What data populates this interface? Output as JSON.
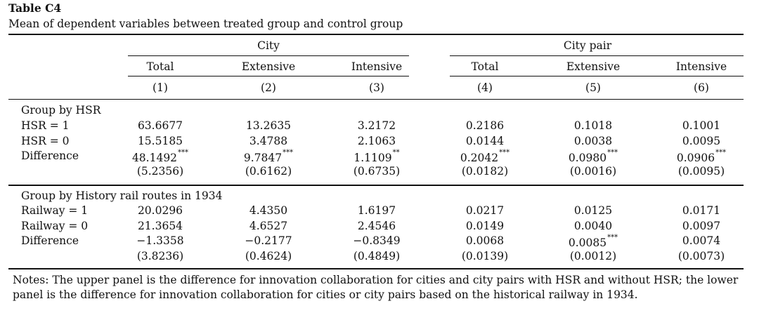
{
  "table": {
    "title": "Table C4",
    "subtitle": "Mean of dependent variables between treated group and control group",
    "group_headers": [
      "City",
      "City pair"
    ],
    "columns": [
      "Total",
      "Extensive",
      "Intensive",
      "Total",
      "Extensive",
      "Intensive"
    ],
    "column_numbers": [
      "(1)",
      "(2)",
      "(3)",
      "(4)",
      "(5)",
      "(6)"
    ],
    "panels": [
      {
        "label": "Group by HSR",
        "rows": [
          {
            "label": "HSR = 1",
            "values": [
              "63.6677",
              "13.2635",
              "3.2172",
              "0.2186",
              "0.1018",
              "0.1001"
            ],
            "stars": [
              "",
              "",
              "",
              "",
              "",
              ""
            ]
          },
          {
            "label": "HSR = 0",
            "values": [
              "15.5185",
              "3.4788",
              "2.1063",
              "0.0144",
              "0.0038",
              "0.0095"
            ],
            "stars": [
              "",
              "",
              "",
              "",
              "",
              ""
            ]
          },
          {
            "label": "Difference",
            "values": [
              "48.1492",
              "9.7847",
              "1.1109",
              "0.2042",
              "0.0980",
              "0.0906"
            ],
            "stars": [
              "***",
              "***",
              "**",
              "***",
              "***",
              "***"
            ]
          },
          {
            "label": "",
            "values": [
              "(5.2356)",
              "(0.6162)",
              "(0.6735)",
              "(0.0182)",
              "(0.0016)",
              "(0.0095)"
            ],
            "stars": [
              "",
              "",
              "",
              "",
              "",
              ""
            ]
          }
        ]
      },
      {
        "label": "Group by History rail routes in 1934",
        "rows": [
          {
            "label": "Railway = 1",
            "values": [
              "20.0296",
              "4.4350",
              "1.6197",
              "0.0217",
              "0.0125",
              "0.0171"
            ],
            "stars": [
              "",
              "",
              "",
              "",
              "",
              ""
            ]
          },
          {
            "label": "Railway = 0",
            "values": [
              "21.3654",
              "4.6527",
              "2.4546",
              "0.0149",
              "0.0040",
              "0.0097"
            ],
            "stars": [
              "",
              "",
              "",
              "",
              "",
              ""
            ]
          },
          {
            "label": "Difference",
            "values": [
              "−1.3358",
              "−0.2177",
              "−0.8349",
              "0.0068",
              "0.0085",
              "0.0074"
            ],
            "stars": [
              "",
              "",
              "",
              "",
              "***",
              ""
            ]
          },
          {
            "label": "",
            "values": [
              "(3.8236)",
              "(0.4624)",
              "(0.4849)",
              "(0.0139)",
              "(0.0012)",
              "(0.0073)"
            ],
            "stars": [
              "",
              "",
              "",
              "",
              "",
              ""
            ]
          }
        ]
      }
    ],
    "notes": "Notes: The upper panel is the difference for innovation collaboration for cities and city pairs with HSR and without HSR; the lower panel is the difference for innovation collaboration for cities or city pairs based on the historical railway in 1934."
  }
}
